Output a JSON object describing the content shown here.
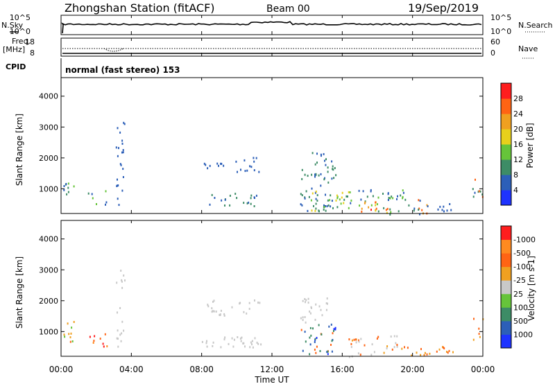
{
  "header": {
    "title": "Zhongshan Station (fitACF)",
    "beam": "Beam 00",
    "date": "19/Sep/2019"
  },
  "top_panels": {
    "nsky_label": "N.Sky",
    "nsky_scale": [
      "10^5",
      "10^0"
    ],
    "nsearch_label": "N.Search",
    "nsearch_scale": [
      "10^5",
      "10^0"
    ],
    "freq_label": "Freq.",
    "freq_unit": "[MHz]",
    "freq_scale": [
      "18",
      "8"
    ],
    "nave_label": "Nave",
    "nave_scale": [
      "60",
      "0"
    ],
    "cpid_label": "CPID",
    "cpid_text": "normal (fast stereo) 153"
  },
  "x_axis": {
    "label": "Time UT",
    "ticks": [
      "00:00",
      "04:00",
      "08:00",
      "12:00",
      "16:00",
      "20:00",
      "00:00"
    ]
  },
  "chart_data": [
    {
      "type": "heatmap",
      "panel": "power",
      "ylabel": "Slant Range [km]",
      "y_ticks": [
        "1000",
        "2000",
        "3000",
        "4000"
      ],
      "ylim": [
        200,
        4600
      ],
      "xlim_hours": [
        0,
        24
      ],
      "colorbar_label": "Power [dB]",
      "colorbar_ticks": [
        "4",
        "8",
        "12",
        "16",
        "20",
        "24",
        "28"
      ],
      "colorbar_colors": [
        "#1e33ff",
        "#2c5fb8",
        "#3d8c66",
        "#66c43a",
        "#e8d01c",
        "#f0a020",
        "#ff6414",
        "#ff1e1e"
      ],
      "regions": [
        {
          "t0": 0.0,
          "t1": 0.7,
          "r0": 700,
          "r1": 1350,
          "levels": [
            1,
            2,
            3
          ]
        },
        {
          "t0": 1.5,
          "t1": 2.6,
          "r0": 500,
          "r1": 1000,
          "levels": [
            1,
            2,
            3
          ]
        },
        {
          "t0": 3.1,
          "t1": 3.6,
          "r0": 500,
          "r1": 3200,
          "levels": [
            1
          ]
        },
        {
          "t0": 8.1,
          "t1": 9.6,
          "r0": 1600,
          "r1": 1900,
          "levels": [
            1
          ]
        },
        {
          "t0": 9.6,
          "t1": 11.3,
          "r0": 1550,
          "r1": 2050,
          "levels": [
            1
          ]
        },
        {
          "t0": 8.0,
          "t1": 11.4,
          "r0": 450,
          "r1": 900,
          "levels": [
            1,
            2
          ]
        },
        {
          "t0": 13.6,
          "t1": 15.6,
          "r0": 300,
          "r1": 2200,
          "levels": [
            1,
            2
          ]
        },
        {
          "t0": 14.2,
          "t1": 16.4,
          "r0": 300,
          "r1": 1000,
          "levels": [
            2,
            3,
            4
          ]
        },
        {
          "t0": 16.2,
          "t1": 19.6,
          "r0": 200,
          "r1": 1000,
          "levels": [
            1,
            2,
            3
          ]
        },
        {
          "t0": 17.0,
          "t1": 18.7,
          "r0": 200,
          "r1": 600,
          "levels": [
            4,
            5,
            6,
            7
          ]
        },
        {
          "t0": 19.5,
          "t1": 20.8,
          "r0": 200,
          "r1": 700,
          "levels": [
            1,
            2,
            5,
            6
          ]
        },
        {
          "t0": 20.8,
          "t1": 22.4,
          "r0": 300,
          "r1": 600,
          "levels": [
            1
          ]
        },
        {
          "t0": 23.4,
          "t1": 24.0,
          "r0": 750,
          "r1": 1450,
          "levels": [
            1,
            2,
            6
          ]
        }
      ]
    },
    {
      "type": "heatmap",
      "panel": "velocity",
      "ylabel": "Slant Range [km]",
      "y_ticks": [
        "1000",
        "2000",
        "3000",
        "4000"
      ],
      "ylim": [
        200,
        4600
      ],
      "xlim_hours": [
        0,
        24
      ],
      "colorbar_label": "Velocity [m s-1]",
      "colorbar_ticks": [
        "1000",
        "500",
        "100",
        "25",
        "-25",
        "-100",
        "-500",
        "-1000"
      ],
      "colorbar_colors": [
        "#1e33ff",
        "#2c5fb8",
        "#3d8c66",
        "#66c43a",
        "#c8c8c8",
        "#f0a020",
        "#ff6414",
        "#ff8a20",
        "#ff1e1e"
      ],
      "regions": [
        {
          "t0": 0.0,
          "t1": 0.7,
          "r0": 700,
          "r1": 1350,
          "levels": [
            5,
            6,
            3
          ]
        },
        {
          "t0": 1.5,
          "t1": 2.6,
          "r0": 500,
          "r1": 1000,
          "levels": [
            6,
            7,
            8
          ]
        },
        {
          "t0": 3.1,
          "t1": 3.6,
          "r0": 500,
          "r1": 3200,
          "levels": [
            4
          ]
        },
        {
          "t0": 8.1,
          "t1": 11.3,
          "r0": 1550,
          "r1": 2050,
          "levels": [
            4
          ]
        },
        {
          "t0": 8.0,
          "t1": 11.4,
          "r0": 450,
          "r1": 900,
          "levels": [
            4
          ]
        },
        {
          "t0": 13.6,
          "t1": 15.6,
          "r0": 300,
          "r1": 1300,
          "levels": [
            0,
            1,
            2,
            6
          ]
        },
        {
          "t0": 13.6,
          "t1": 15.2,
          "r0": 1300,
          "r1": 2200,
          "levels": [
            4
          ]
        },
        {
          "t0": 16.2,
          "t1": 19.6,
          "r0": 200,
          "r1": 900,
          "levels": [
            4,
            4,
            5,
            6
          ]
        },
        {
          "t0": 19.5,
          "t1": 20.8,
          "r0": 200,
          "r1": 700,
          "levels": [
            5,
            6,
            7
          ]
        },
        {
          "t0": 20.8,
          "t1": 22.4,
          "r0": 300,
          "r1": 600,
          "levels": [
            5,
            6
          ]
        },
        {
          "t0": 23.4,
          "t1": 24.0,
          "r0": 750,
          "r1": 1450,
          "levels": [
            5,
            6
          ]
        }
      ]
    }
  ]
}
